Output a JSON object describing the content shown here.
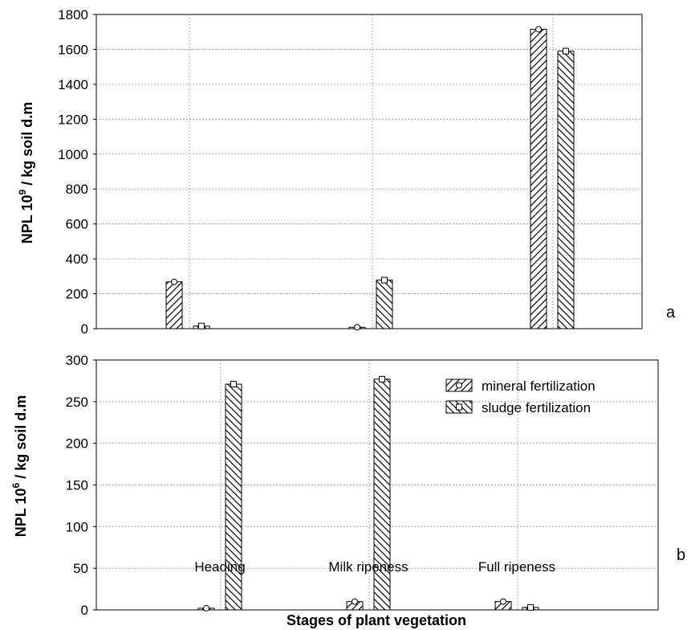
{
  "figure": {
    "xlabel": "Stages of plant vegetation"
  },
  "legend": [
    "mineral fertilization",
    "sludge fertilization"
  ],
  "chart_data": [
    {
      "type": "bar",
      "panel": "a",
      "categories": [
        "Heading",
        "Milk ripeness",
        "Full ripeness"
      ],
      "series": [
        {
          "name": "mineral fertilization",
          "values": [
            268,
            8,
            1715
          ]
        },
        {
          "name": "sludge fertilization",
          "values": [
            15,
            278,
            1590
          ]
        }
      ],
      "ylabel_main": "NPL 10",
      "ylabel_exp": "9",
      "ylabel_rest": " / kg soil d.m",
      "ylim": [
        0,
        1800
      ],
      "yticks": [
        0,
        200,
        400,
        600,
        800,
        1000,
        1200,
        1400,
        1600,
        1800
      ],
      "grid": true
    },
    {
      "type": "bar",
      "panel": "b",
      "categories": [
        "Heading",
        "Milk ripeness",
        "Full ripeness"
      ],
      "series": [
        {
          "name": "mineral fertilization",
          "values": [
            2,
            10,
            10
          ]
        },
        {
          "name": "sludge fertilization",
          "values": [
            271,
            277,
            3
          ]
        }
      ],
      "ylabel_main": "NPL 10",
      "ylabel_exp": "6",
      "ylabel_rest": " / kg soil d.m",
      "ylim": [
        0,
        300
      ],
      "yticks": [
        0,
        50,
        100,
        150,
        200,
        250,
        300
      ],
      "legend_position": "top-right",
      "grid": true
    }
  ]
}
